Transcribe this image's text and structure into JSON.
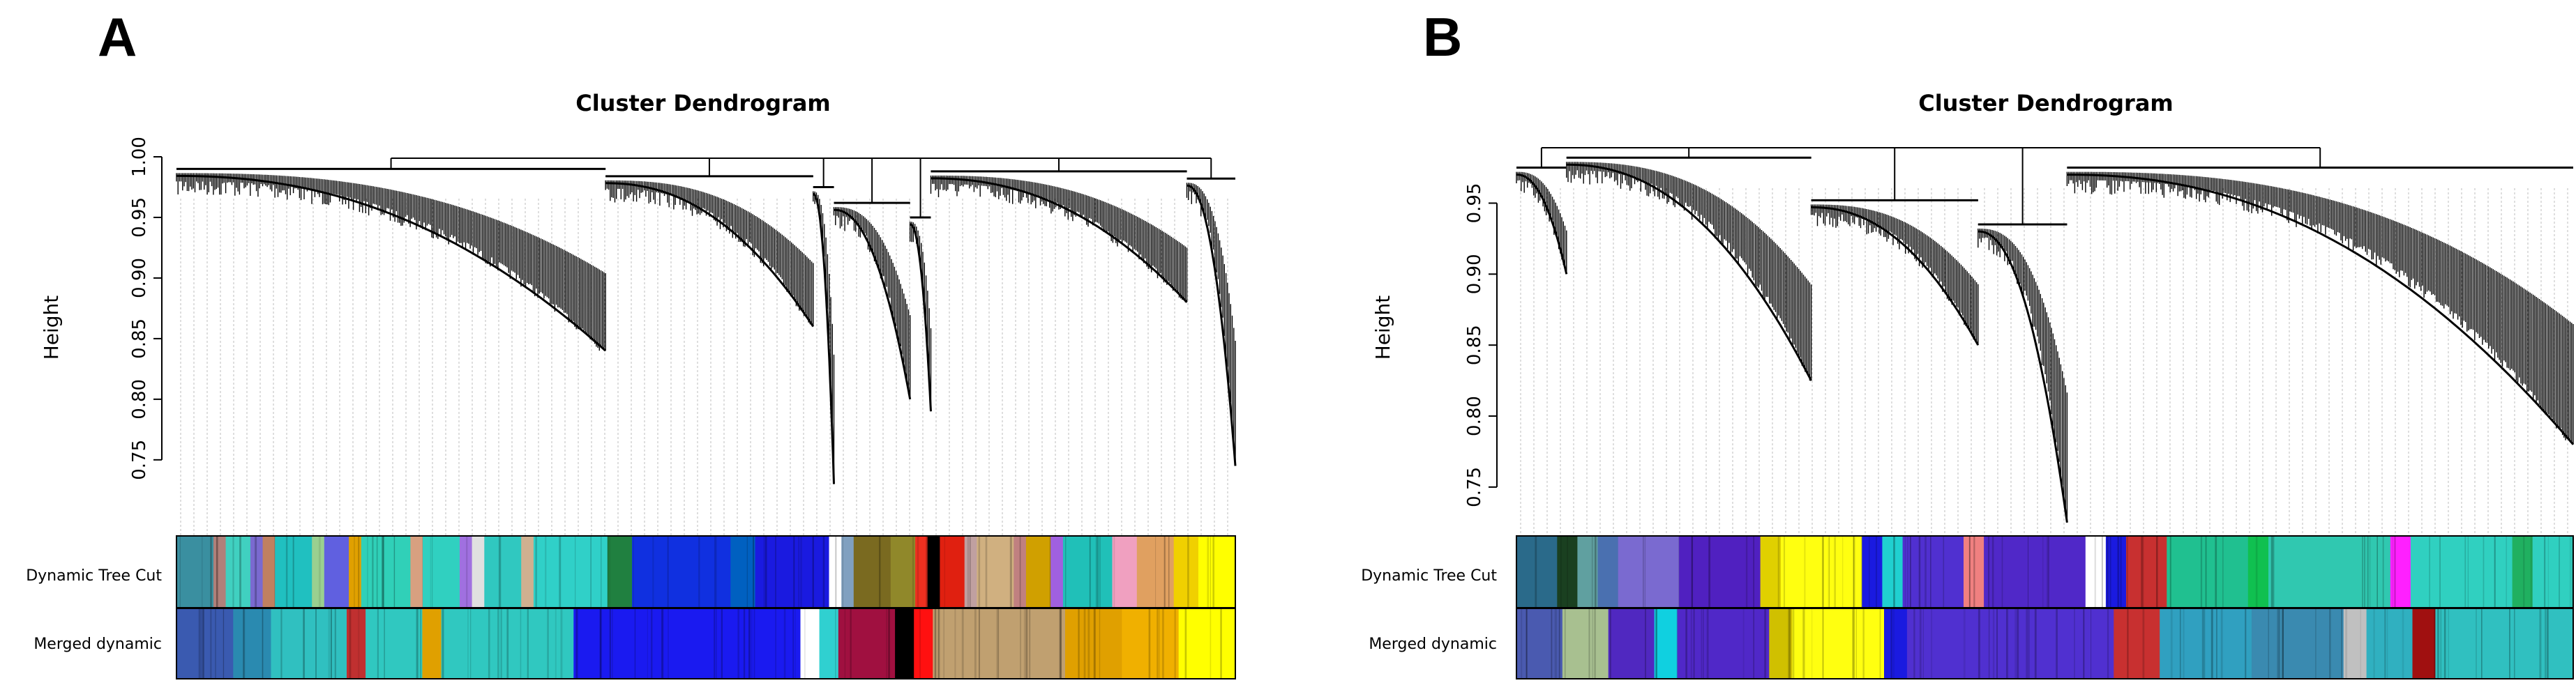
{
  "chart_data": [
    {
      "panel_label": "A",
      "type": "dendrogram",
      "title": "Cluster Dendrogram",
      "ylabel": "Height",
      "y_ticks": [
        0.75,
        0.8,
        0.85,
        0.9,
        0.95,
        1.0
      ],
      "y_tick_labels": [
        "0.75",
        "0.80",
        "0.85",
        "0.90",
        "0.95",
        "1.00"
      ],
      "ylim": [
        0.72,
        1.0
      ],
      "color_rows": [
        "Dynamic Tree Cut",
        "Merged dynamic"
      ],
      "clusters": [
        {
          "leaves": 620,
          "bottom": 0.84,
          "merge": 0.99
        },
        {
          "leaves": 300,
          "bottom": 0.86,
          "merge": 0.984
        },
        {
          "leaves": 30,
          "bottom": 0.73,
          "merge": 0.975
        },
        {
          "leaves": 110,
          "bottom": 0.8,
          "merge": 0.962
        },
        {
          "leaves": 30,
          "bottom": 0.79,
          "merge": 0.95
        },
        {
          "leaves": 370,
          "bottom": 0.88,
          "merge": 0.988
        },
        {
          "leaves": 70,
          "bottom": 0.745,
          "merge": 0.982
        }
      ],
      "modules_dynamic": [
        {
          "color": "#3a8fa0",
          "width": 3
        },
        {
          "color": "#b0807a",
          "width": 1
        },
        {
          "color": "#40d0c0",
          "width": 2
        },
        {
          "color": "#7a6ad0",
          "width": 1
        },
        {
          "color": "#c08060",
          "width": 1
        },
        {
          "color": "#20c0c0",
          "width": 3
        },
        {
          "color": "#9ad090",
          "width": 1
        },
        {
          "color": "#6060e0",
          "width": 2
        },
        {
          "color": "#e0a000",
          "width": 1
        },
        {
          "color": "#30d0b8",
          "width": 4
        },
        {
          "color": "#d8a080",
          "width": 1
        },
        {
          "color": "#30d0c0",
          "width": 3
        },
        {
          "color": "#a070e0",
          "width": 1
        },
        {
          "color": "#e0e0e0",
          "width": 1
        },
        {
          "color": "#30c8c0",
          "width": 3
        },
        {
          "color": "#d0b090",
          "width": 1
        },
        {
          "color": "#30d0c8",
          "width": 6
        },
        {
          "color": "#208040",
          "width": 2
        },
        {
          "color": "#1030e0",
          "width": 8
        },
        {
          "color": "#0060c0",
          "width": 2
        },
        {
          "color": "#1a1ae0",
          "width": 6
        },
        {
          "color": "#ffffff",
          "width": 1
        },
        {
          "color": "#80a0c0",
          "width": 1
        },
        {
          "color": "#7a6a20",
          "width": 3
        },
        {
          "color": "#90882a",
          "width": 2
        },
        {
          "color": "#f03020",
          "width": 1
        },
        {
          "color": "#000000",
          "width": 1
        },
        {
          "color": "#e02010",
          "width": 2
        },
        {
          "color": "#c0a0a0",
          "width": 1
        },
        {
          "color": "#d0b080",
          "width": 3
        },
        {
          "color": "#c08080",
          "width": 1
        },
        {
          "color": "#d0a000",
          "width": 2
        },
        {
          "color": "#a060e0",
          "width": 1
        },
        {
          "color": "#20c0b8",
          "width": 4
        },
        {
          "color": "#f0a0c0",
          "width": 2
        },
        {
          "color": "#e0a060",
          "width": 3
        },
        {
          "color": "#f0d000",
          "width": 2
        },
        {
          "color": "#ffff00",
          "width": 3
        }
      ],
      "modules_merged": [
        {
          "color": "#3a5ab0",
          "width": 3
        },
        {
          "color": "#2a8ab0",
          "width": 2
        },
        {
          "color": "#30c0c0",
          "width": 4
        },
        {
          "color": "#c03030",
          "width": 1
        },
        {
          "color": "#30c8c0",
          "width": 3
        },
        {
          "color": "#e0a000",
          "width": 1
        },
        {
          "color": "#30c8c0",
          "width": 7
        },
        {
          "color": "#1a1af0",
          "width": 12
        },
        {
          "color": "#ffffff",
          "width": 1
        },
        {
          "color": "#30d0d0",
          "width": 1
        },
        {
          "color": "#a01040",
          "width": 3
        },
        {
          "color": "#000000",
          "width": 1
        },
        {
          "color": "#ff1010",
          "width": 1
        },
        {
          "color": "#c0a070",
          "width": 7
        },
        {
          "color": "#e0a000",
          "width": 3
        },
        {
          "color": "#f0b000",
          "width": 3
        },
        {
          "color": "#ffff00",
          "width": 3
        }
      ]
    },
    {
      "panel_label": "B",
      "type": "dendrogram",
      "title": "Cluster Dendrogram",
      "ylabel": "Height",
      "y_ticks": [
        0.75,
        0.8,
        0.85,
        0.9,
        0.95
      ],
      "y_tick_labels": [
        "0.75",
        "0.80",
        "0.85",
        "0.90",
        "0.95"
      ],
      "ylim": [
        0.72,
        0.99
      ],
      "color_rows": [
        "Dynamic Tree Cut",
        "Merged dynamic"
      ],
      "clusters": [
        {
          "leaves": 90,
          "bottom": 0.9,
          "merge": 0.975
        },
        {
          "leaves": 440,
          "bottom": 0.825,
          "merge": 0.982
        },
        {
          "leaves": 300,
          "bottom": 0.85,
          "merge": 0.952
        },
        {
          "leaves": 160,
          "bottom": 0.725,
          "merge": 0.935
        },
        {
          "leaves": 910,
          "bottom": 0.78,
          "merge": 0.975
        }
      ],
      "modules_dynamic": [
        {
          "color": "#2a6a8a",
          "width": 2
        },
        {
          "color": "#1a4020",
          "width": 1
        },
        {
          "color": "#60a0a0",
          "width": 1
        },
        {
          "color": "#4a70b0",
          "width": 1
        },
        {
          "color": "#7a6ad0",
          "width": 3
        },
        {
          "color": "#5020c0",
          "width": 4
        },
        {
          "color": "#e0d000",
          "width": 1
        },
        {
          "color": "#ffff10",
          "width": 4
        },
        {
          "color": "#1a1ae0",
          "width": 1
        },
        {
          "color": "#20d0d0",
          "width": 1
        },
        {
          "color": "#5030d0",
          "width": 3
        },
        {
          "color": "#f08080",
          "width": 1
        },
        {
          "color": "#5028c8",
          "width": 5
        },
        {
          "color": "#ffffff",
          "width": 1
        },
        {
          "color": "#1a1ae0",
          "width": 1
        },
        {
          "color": "#c83030",
          "width": 2
        },
        {
          "color": "#20c090",
          "width": 4
        },
        {
          "color": "#10c050",
          "width": 1
        },
        {
          "color": "#30c8b0",
          "width": 6
        },
        {
          "color": "#ff20ff",
          "width": 1
        },
        {
          "color": "#30d0c0",
          "width": 5
        },
        {
          "color": "#20b060",
          "width": 1
        },
        {
          "color": "#30d0c0",
          "width": 2
        }
      ],
      "modules_merged": [
        {
          "color": "#4a5ab0",
          "width": 2
        },
        {
          "color": "#a8c090",
          "width": 2
        },
        {
          "color": "#5028c0",
          "width": 2
        },
        {
          "color": "#10d0e0",
          "width": 1
        },
        {
          "color": "#5028c8",
          "width": 4
        },
        {
          "color": "#d0c000",
          "width": 1
        },
        {
          "color": "#ffff10",
          "width": 4
        },
        {
          "color": "#1a1ae0",
          "width": 1
        },
        {
          "color": "#5030d0",
          "width": 9
        },
        {
          "color": "#c83030",
          "width": 2
        },
        {
          "color": "#30a0c0",
          "width": 4
        },
        {
          "color": "#3a8ab0",
          "width": 4
        },
        {
          "color": "#c0c0c0",
          "width": 1
        },
        {
          "color": "#30b0c0",
          "width": 2
        },
        {
          "color": "#a01010",
          "width": 1
        },
        {
          "color": "#30c0c0",
          "width": 6
        }
      ]
    }
  ]
}
